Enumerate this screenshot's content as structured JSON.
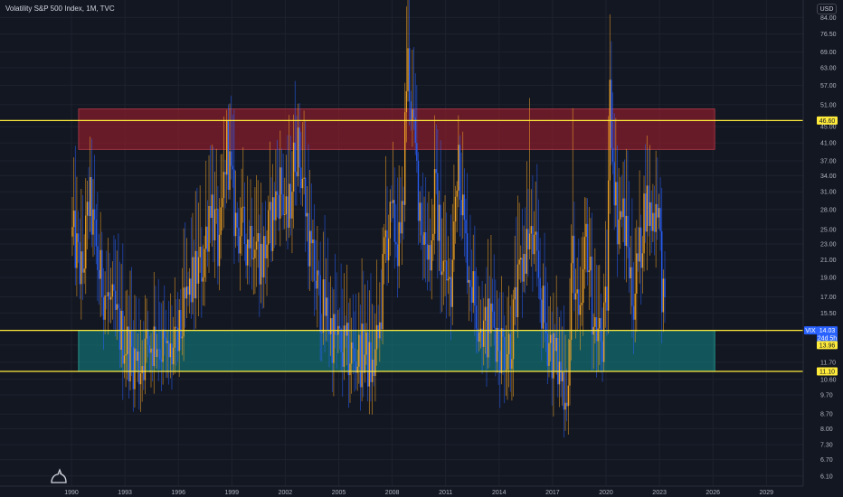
{
  "header": {
    "title": "Volatility S&P 500 Index, 1M, TVC",
    "currency_button": "USD"
  },
  "colors": {
    "background": "#131722",
    "up_candle": "#f5a623",
    "down_candle": "#2962ff",
    "level_line": "#ffeb3b",
    "resistance_zone": "#8b1e2b",
    "support_zone": "#138a8a",
    "axis_text": "#b2b5be",
    "vix_tag": "#2962ff"
  },
  "chart_data": {
    "type": "candlestick",
    "title": "Volatility S&P 500 Index, 1M, TVC",
    "y_scale": "log",
    "ylim": [
      6.0,
      90.0
    ],
    "xlim": [
      1990.0,
      2031.0
    ],
    "y_ticks": [
      "84.00",
      "76.50",
      "69.00",
      "63.00",
      "57.00",
      "51.00",
      "45.00",
      "41.00",
      "37.00",
      "34.00",
      "31.00",
      "28.00",
      "25.00",
      "23.00",
      "21.00",
      "19.00",
      "17.00",
      "15.50",
      "14.00",
      "12.90",
      "11.70",
      "10.60",
      "9.70",
      "8.70",
      "8.00",
      "7.30",
      "6.70",
      "6.10"
    ],
    "x_ticks": [
      "1990",
      "1993",
      "1996",
      "1999",
      "2002",
      "2005",
      "2008",
      "2011",
      "2014",
      "2017",
      "2020",
      "2023",
      "2026",
      "2029"
    ],
    "horizontal_lines": [
      {
        "label": "46.60",
        "value": 46.6
      },
      {
        "label": "14.03",
        "value": 14.03
      },
      {
        "label": "11.10",
        "value": 11.1
      }
    ],
    "zones": [
      {
        "name": "resistance",
        "from": 39.5,
        "to": 49.8,
        "x_start": 1990.4,
        "x_end": 2026.1
      },
      {
        "name": "support",
        "from": 11.1,
        "to": 14.03,
        "x_start": 1990.4,
        "x_end": 2026.1
      }
    ],
    "price_tags": [
      {
        "label": "46.60",
        "value": 46.6,
        "kind": "level"
      },
      {
        "label": "VIX",
        "value": 14.03,
        "kind": "symbol"
      },
      {
        "label": "14.03",
        "value": 14.03,
        "kind": "last"
      },
      {
        "label": "24d 5h",
        "value": 13.45,
        "kind": "countdown"
      },
      {
        "label": "13.96",
        "value": 12.9,
        "kind": "level"
      },
      {
        "label": "11.10",
        "value": 11.1,
        "kind": "level"
      }
    ],
    "anchors": [
      [
        1990.1,
        24
      ],
      [
        1990.6,
        19
      ],
      [
        1991.0,
        30
      ],
      [
        1991.5,
        20
      ],
      [
        1992.0,
        17
      ],
      [
        1992.6,
        14.5
      ],
      [
        1993.1,
        13
      ],
      [
        1993.8,
        11.5
      ],
      [
        1994.3,
        13
      ],
      [
        1994.8,
        13.5
      ],
      [
        1995.4,
        12
      ],
      [
        1995.9,
        12.5
      ],
      [
        1996.4,
        16
      ],
      [
        1996.9,
        19
      ],
      [
        1997.4,
        21
      ],
      [
        1997.8,
        31
      ],
      [
        1998.3,
        21
      ],
      [
        1998.7,
        42
      ],
      [
        1999.2,
        26
      ],
      [
        1999.7,
        24
      ],
      [
        2000.2,
        25
      ],
      [
        2000.7,
        21
      ],
      [
        2001.2,
        26
      ],
      [
        2001.7,
        33
      ],
      [
        2002.1,
        25
      ],
      [
        2002.6,
        42
      ],
      [
        2003.0,
        33
      ],
      [
        2003.4,
        22
      ],
      [
        2003.9,
        17
      ],
      [
        2004.4,
        15
      ],
      [
        2004.9,
        13
      ],
      [
        2005.4,
        12.5
      ],
      [
        2005.9,
        12
      ],
      [
        2006.4,
        12.5
      ],
      [
        2006.9,
        11
      ],
      [
        2007.3,
        14
      ],
      [
        2007.6,
        24
      ],
      [
        2008.0,
        26
      ],
      [
        2008.5,
        22
      ],
      [
        2008.85,
        68
      ],
      [
        2009.2,
        42
      ],
      [
        2009.7,
        25
      ],
      [
        2010.2,
        22
      ],
      [
        2010.4,
        32
      ],
      [
        2010.8,
        21
      ],
      [
        2011.3,
        17
      ],
      [
        2011.7,
        42
      ],
      [
        2012.1,
        23
      ],
      [
        2012.6,
        17
      ],
      [
        2013.1,
        14
      ],
      [
        2013.6,
        15
      ],
      [
        2014.1,
        13
      ],
      [
        2014.6,
        13
      ],
      [
        2015.0,
        17
      ],
      [
        2015.6,
        24
      ],
      [
        2016.0,
        22
      ],
      [
        2016.6,
        14
      ],
      [
        2016.9,
        13
      ],
      [
        2017.4,
        11
      ],
      [
        2017.9,
        10
      ],
      [
        2018.1,
        23
      ],
      [
        2018.5,
        13
      ],
      [
        2018.9,
        25
      ],
      [
        2019.3,
        15
      ],
      [
        2019.8,
        13
      ],
      [
        2020.05,
        17
      ],
      [
        2020.2,
        55
      ],
      [
        2020.6,
        27
      ],
      [
        2021.0,
        27
      ],
      [
        2021.5,
        17
      ],
      [
        2021.9,
        22
      ],
      [
        2022.2,
        30
      ],
      [
        2022.6,
        26
      ],
      [
        2022.9,
        31
      ],
      [
        2023.1,
        20
      ],
      [
        2023.3,
        14.5
      ]
    ],
    "spikes": [
      {
        "t": 2008.82,
        "high": 89.5,
        "low": 16
      },
      {
        "t": 2020.2,
        "high": 85.5,
        "low": 14
      },
      {
        "t": 1998.7,
        "high": 49.5,
        "low": 18
      },
      {
        "t": 2002.6,
        "high": 48,
        "low": 20
      },
      {
        "t": 2011.72,
        "high": 48,
        "low": 16
      },
      {
        "t": 2015.7,
        "high": 53,
        "low": 13
      },
      {
        "t": 2018.12,
        "high": 50,
        "low": 13
      },
      {
        "t": 2001.7,
        "high": 44,
        "low": 20
      },
      {
        "t": 2010.4,
        "high": 48,
        "low": 16
      },
      {
        "t": 2007.6,
        "high": 38,
        "low": 12
      }
    ]
  }
}
